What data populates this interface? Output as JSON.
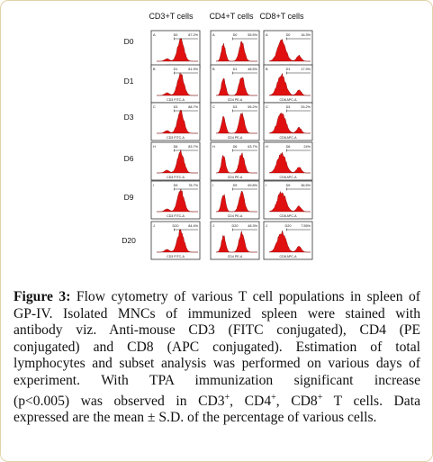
{
  "figure": {
    "columns": [
      "CD3+T cells",
      "CD4+T cells",
      "CD8+T cells"
    ],
    "rows": [
      "D0",
      "D1",
      "D3",
      "D6",
      "D9",
      "D20"
    ],
    "axis_labels": [
      "CD3 FITC-A",
      "CD4 PE-A",
      "CD8 APC-A"
    ],
    "panels": [
      [
        {
          "letter": "A",
          "gate": "D0",
          "pct": "87.2%"
        },
        {
          "letter": "A",
          "gate": "D0",
          "pct": "55.5%"
        },
        {
          "letter": "A",
          "gate": "D0",
          "pct": "16.3%"
        }
      ],
      [
        {
          "letter": "B",
          "gate": "D1",
          "pct": "81.9%"
        },
        {
          "letter": "B",
          "gate": "D1",
          "pct": "48.5%"
        },
        {
          "letter": "B",
          "gate": "D1",
          "pct": "17.9%"
        }
      ],
      [
        {
          "letter": "C",
          "gate": "D3",
          "pct": "88.7%"
        },
        {
          "letter": "C",
          "gate": "D3",
          "pct": "55.2%"
        },
        {
          "letter": "C",
          "gate": "D3",
          "pct": "33.2%"
        }
      ],
      [
        {
          "letter": "H",
          "gate": "D6",
          "pct": "83.7%"
        },
        {
          "letter": "H",
          "gate": "D6",
          "pct": "63.7%"
        },
        {
          "letter": "H",
          "gate": "D6",
          "pct": "24%"
        }
      ],
      [
        {
          "letter": "I",
          "gate": "D9",
          "pct": "78.7%"
        },
        {
          "letter": "I",
          "gate": "D9",
          "pct": "69.8%"
        },
        {
          "letter": "I",
          "gate": "D9",
          "pct": "36.5%"
        }
      ],
      [
        {
          "letter": "J",
          "gate": "D20",
          "pct": "84.4%"
        },
        {
          "letter": "J",
          "gate": "D20",
          "pct": "48.3%"
        },
        {
          "letter": "J",
          "gate": "D20",
          "pct": "7.55%"
        }
      ]
    ]
  },
  "caption": {
    "label": "Figure 3:",
    "lines": [
      " Flow cytometry of various T cell populations in spleen of",
      "GP-IV. Isolated MNCs of immunized spleen were stained with",
      "antibody viz. Anti-mouse CD3 (FITC conjugated), CD4 (PE",
      "conjugated) and CD8 (APC conjugated). Estimation of total",
      "lymphocytes and subset analysis was performed on various days of",
      "experiment. With TPA immunization significant increase"
    ],
    "line7_pre": "(p<0.005) was observed in CD3",
    "line7_sup1": "+",
    "line7_mid1": ", CD4",
    "line7_sup2": "+",
    "line7_mid2": ", CD8",
    "line7_sup3": "+",
    "line7_post": " T cells. Data",
    "line8": "expressed are the mean ± S.D. of the percentage of various cells."
  }
}
